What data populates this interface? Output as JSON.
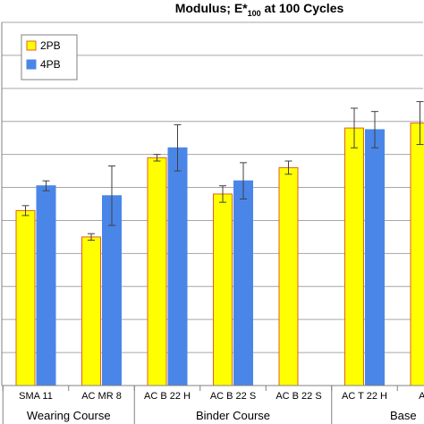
{
  "chart_data": {
    "type": "bar",
    "title_main": "Modulus; E*",
    "title_sub": "100",
    "title_tail": " at 100 Cycles",
    "xlabel": "",
    "ylabel": "",
    "ylim": [
      0,
      11
    ],
    "grid": true,
    "legend_position": "top-left",
    "categories": [
      "SMA 11",
      "AC MR 8",
      "AC B 22 H",
      "AC B 22 S",
      "AC B 22 S",
      "AC T 22 H",
      "AC B"
    ],
    "groups": [
      {
        "label": "Wearing Course",
        "span": [
          0,
          1
        ]
      },
      {
        "label": "Binder Course",
        "span": [
          2,
          4
        ]
      },
      {
        "label": "Base",
        "span": [
          5,
          6
        ]
      }
    ],
    "series": [
      {
        "name": "2PB",
        "color": "#ffff00",
        "border": "#e06020",
        "values": [
          5.3,
          4.5,
          6.9,
          5.8,
          6.6,
          7.8,
          7.95
        ],
        "error": [
          0.15,
          0.1,
          0.1,
          0.25,
          0.2,
          0.6,
          0.65
        ]
      },
      {
        "name": "4PB",
        "color": "#4a86e8",
        "border": "#4a86e8",
        "values": [
          6.05,
          5.75,
          7.2,
          6.2,
          null,
          7.75,
          null
        ],
        "error": [
          0.15,
          0.9,
          0.7,
          0.55,
          null,
          0.55,
          null
        ]
      }
    ]
  }
}
